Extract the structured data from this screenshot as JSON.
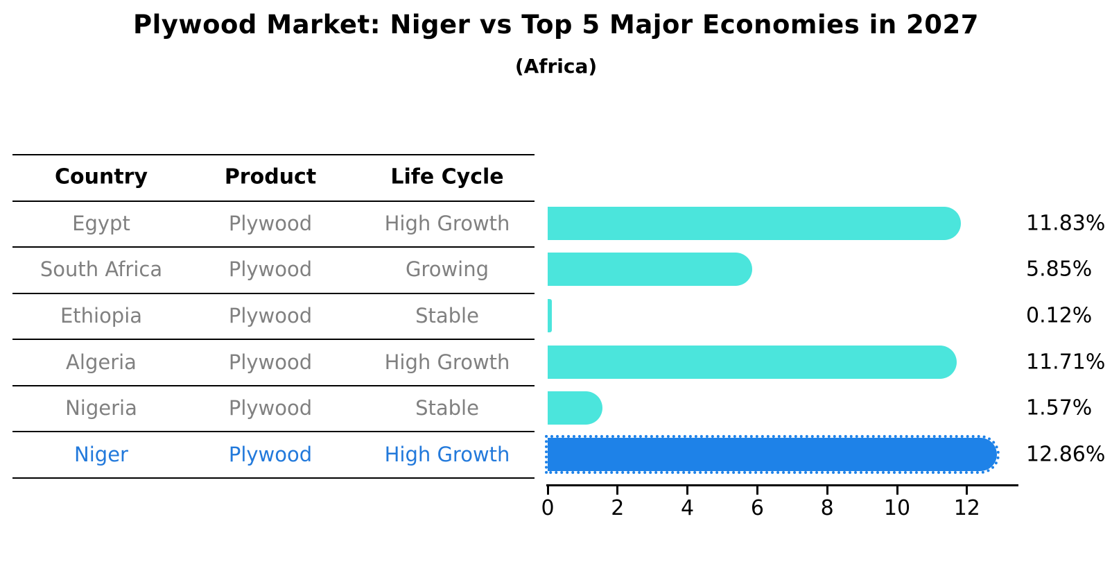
{
  "title": "Plywood Market: Niger vs Top 5 Major Economies in 2027",
  "subtitle": "(Africa)",
  "table": {
    "headers": [
      "Country",
      "Product",
      "Life Cycle"
    ]
  },
  "colors": {
    "bar_default": "#4BE5DC",
    "bar_highlight": "#1E82E8",
    "highlight_text": "#2279DB",
    "cell_text": "#808080",
    "header_text": "#000000",
    "axis": "#000000"
  },
  "chart_data": {
    "type": "bar",
    "orientation": "horizontal",
    "title": "Plywood Market: Niger vs Top 5 Major Economies in 2027",
    "subtitle": "(Africa)",
    "categories": [
      "Egypt",
      "South Africa",
      "Ethiopia",
      "Algeria",
      "Nigeria",
      "Niger"
    ],
    "values": [
      11.83,
      5.85,
      0.12,
      11.71,
      1.57,
      12.86
    ],
    "value_labels": [
      "11.83%",
      "5.85%",
      "0.12%",
      "11.71%",
      "1.57%",
      "12.86%"
    ],
    "highlight_category": "Niger",
    "x_ticks": [
      0,
      2,
      4,
      6,
      8,
      10,
      12
    ],
    "xlim": [
      0,
      13.5
    ],
    "grid": false,
    "legend": false,
    "rows": [
      {
        "country": "Egypt",
        "product": "Plywood",
        "life_cycle": "High Growth",
        "value": 11.83,
        "label": "11.83%",
        "highlight": false
      },
      {
        "country": "South Africa",
        "product": "Plywood",
        "life_cycle": "Growing",
        "value": 5.85,
        "label": "5.85%",
        "highlight": false
      },
      {
        "country": "Ethiopia",
        "product": "Plywood",
        "life_cycle": "Stable",
        "value": 0.12,
        "label": "0.12%",
        "highlight": false
      },
      {
        "country": "Algeria",
        "product": "Plywood",
        "life_cycle": "High Growth",
        "value": 11.71,
        "label": "11.71%",
        "highlight": false
      },
      {
        "country": "Nigeria",
        "product": "Plywood",
        "life_cycle": "Stable",
        "value": 1.57,
        "label": "1.57%",
        "highlight": false
      },
      {
        "country": "Niger",
        "product": "Plywood",
        "life_cycle": "High Growth",
        "value": 12.86,
        "label": "12.86%",
        "highlight": true
      }
    ]
  }
}
